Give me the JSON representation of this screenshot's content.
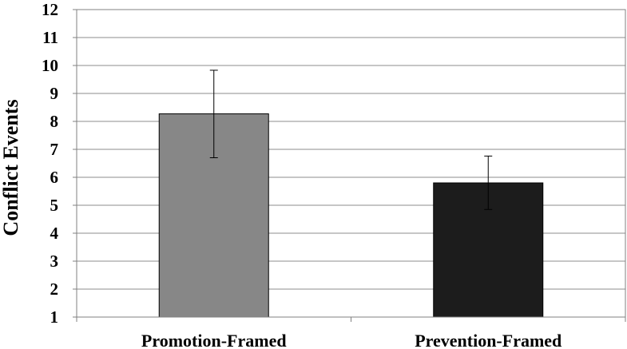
{
  "chart_data": {
    "type": "bar",
    "title": "",
    "xlabel": "",
    "ylabel": "Conflict Events",
    "categories": [
      "Promotion-Framed",
      "Prevention-Framed"
    ],
    "values": [
      8.27,
      5.8
    ],
    "error_bars": [
      {
        "low": 6.7,
        "high": 9.83
      },
      {
        "low": 4.85,
        "high": 6.76
      }
    ],
    "ylim": [
      1,
      12
    ],
    "yticks": [
      "1",
      "2",
      "3",
      "4",
      "5",
      "6",
      "7",
      "8",
      "9",
      "10",
      "11",
      "12"
    ],
    "grid": true,
    "legend": "none",
    "colors": {
      "bars": [
        "#878787",
        "#1c1c1c"
      ],
      "gridline": "#8c8c8c",
      "axis": "#808080"
    }
  }
}
